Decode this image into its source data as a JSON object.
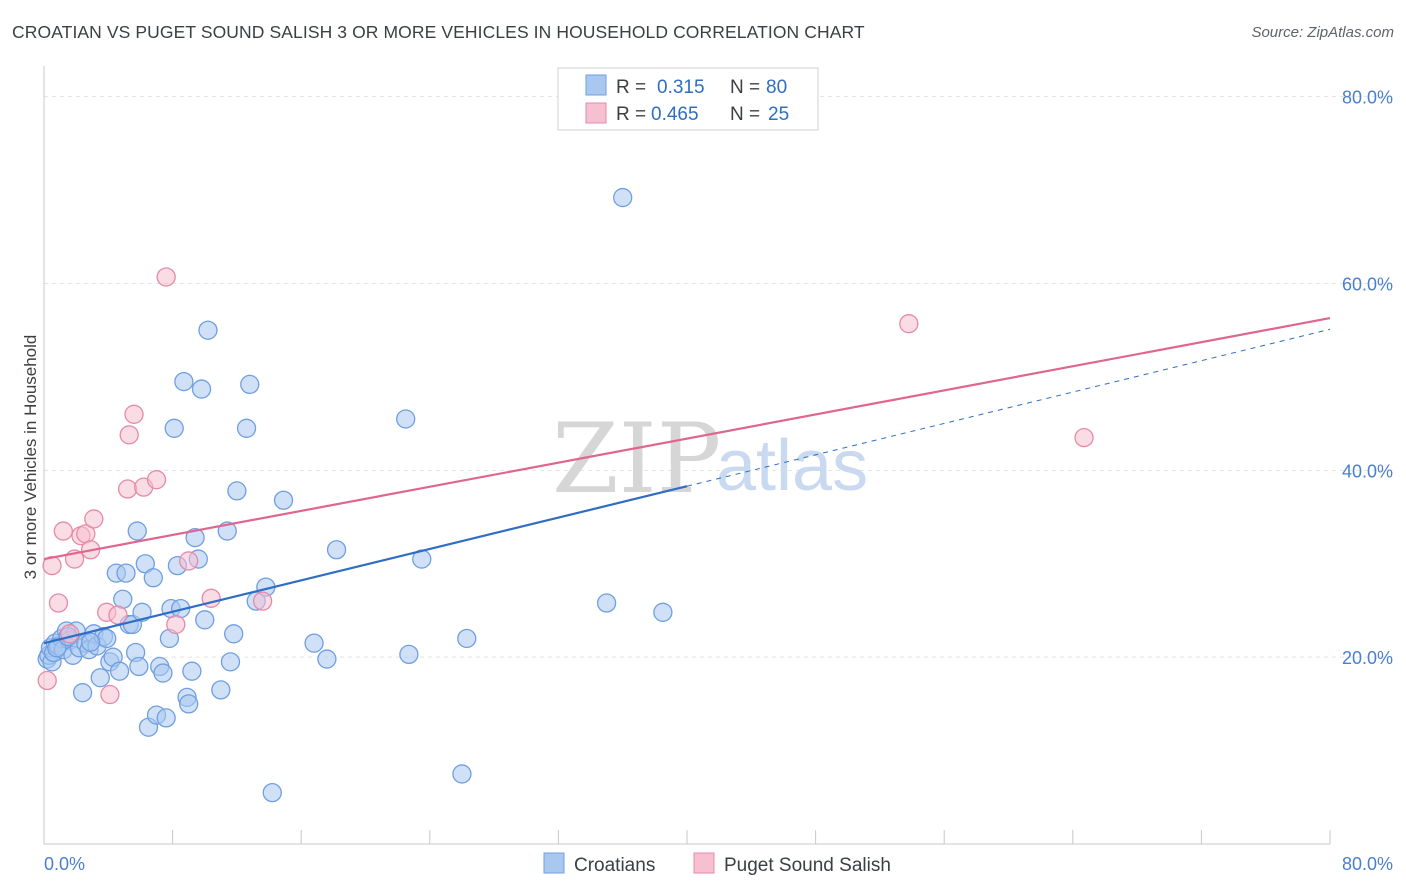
{
  "title": "CROATIAN VS PUGET SOUND SALISH 3 OR MORE VEHICLES IN HOUSEHOLD CORRELATION CHART",
  "source": "Source: ZipAtlas.com",
  "watermark": {
    "zip": "ZIP",
    "atlas": "atlas"
  },
  "colors": {
    "blue_fill": "#a9c8f0",
    "blue_stroke": "#6f9fe0",
    "blue_line": "#2f6ec4",
    "pink_fill": "#f6c0d0",
    "pink_stroke": "#e58aa8",
    "pink_line": "#e0668f",
    "grid": "#e3e3e3",
    "tick_text": "#4a7fd0"
  },
  "legend": {
    "rows": [
      {
        "r_label": "R =",
        "r_value": "0.315",
        "n_label": "N =",
        "n_value": "80",
        "color": "blue"
      },
      {
        "r_label": "R =",
        "r_value": "0.465",
        "n_label": "N =",
        "n_value": "25",
        "color": "pink"
      }
    ]
  },
  "chart_data": {
    "type": "scatter",
    "ylabel": "3 or more Vehicles in Household",
    "xlim": [
      0,
      80
    ],
    "ylim": [
      0,
      82
    ],
    "x_ticks": [
      "0.0%",
      "80.0%"
    ],
    "y_ticks": [
      {
        "value": 20,
        "label": "20.0%"
      },
      {
        "value": 40,
        "label": "40.0%"
      },
      {
        "value": 60,
        "label": "60.0%"
      },
      {
        "value": 80,
        "label": "80.0%"
      }
    ],
    "grid": true,
    "legend_position": "top-center",
    "series": [
      {
        "name": "Croatians",
        "color": "blue",
        "points": [
          [
            0.2,
            19.8
          ],
          [
            0.3,
            20.2
          ],
          [
            0.4,
            21.0
          ],
          [
            0.5,
            19.5
          ],
          [
            0.6,
            20.5
          ],
          [
            0.7,
            21.5
          ],
          [
            0.9,
            21.2
          ],
          [
            1.1,
            22.0
          ],
          [
            1.2,
            20.8
          ],
          [
            1.4,
            22.8
          ],
          [
            1.6,
            21.8
          ],
          [
            1.8,
            20.2
          ],
          [
            2.0,
            22.8
          ],
          [
            2.2,
            21.0
          ],
          [
            2.4,
            16.2
          ],
          [
            2.6,
            21.5
          ],
          [
            2.8,
            20.8
          ],
          [
            3.1,
            22.5
          ],
          [
            3.3,
            21.2
          ],
          [
            3.5,
            17.8
          ],
          [
            3.7,
            22.2
          ],
          [
            3.9,
            22.0
          ],
          [
            4.1,
            19.5
          ],
          [
            4.3,
            20.0
          ],
          [
            4.5,
            29.0
          ],
          [
            4.7,
            18.5
          ],
          [
            4.9,
            26.2
          ],
          [
            5.1,
            29.0
          ],
          [
            5.3,
            23.5
          ],
          [
            5.5,
            23.5
          ],
          [
            5.7,
            20.5
          ],
          [
            5.8,
            33.5
          ],
          [
            5.9,
            19.0
          ],
          [
            6.1,
            24.8
          ],
          [
            6.3,
            30.0
          ],
          [
            6.5,
            12.5
          ],
          [
            6.8,
            28.5
          ],
          [
            7.0,
            13.8
          ],
          [
            7.2,
            19.0
          ],
          [
            7.4,
            18.3
          ],
          [
            7.6,
            13.5
          ],
          [
            7.8,
            22.0
          ],
          [
            7.9,
            25.2
          ],
          [
            8.1,
            44.5
          ],
          [
            8.3,
            29.8
          ],
          [
            8.5,
            25.2
          ],
          [
            8.7,
            49.5
          ],
          [
            8.9,
            15.7
          ],
          [
            9.0,
            15.0
          ],
          [
            9.2,
            18.5
          ],
          [
            9.4,
            32.8
          ],
          [
            9.6,
            30.5
          ],
          [
            9.8,
            48.7
          ],
          [
            10.0,
            24.0
          ],
          [
            10.2,
            55.0
          ],
          [
            11.0,
            16.5
          ],
          [
            11.4,
            33.5
          ],
          [
            11.6,
            19.5
          ],
          [
            11.8,
            22.5
          ],
          [
            12.0,
            37.8
          ],
          [
            12.6,
            44.5
          ],
          [
            12.8,
            49.2
          ],
          [
            13.2,
            26.0
          ],
          [
            13.8,
            27.5
          ],
          [
            14.2,
            5.5
          ],
          [
            14.9,
            36.8
          ],
          [
            16.8,
            21.5
          ],
          [
            17.6,
            19.8
          ],
          [
            18.2,
            31.5
          ],
          [
            22.5,
            45.5
          ],
          [
            22.7,
            20.3
          ],
          [
            23.5,
            30.5
          ],
          [
            26.0,
            7.5
          ],
          [
            26.3,
            22.0
          ],
          [
            35.0,
            25.8
          ],
          [
            36.0,
            69.2
          ],
          [
            38.5,
            24.8
          ],
          [
            0.8,
            21.0
          ],
          [
            1.5,
            22.2
          ],
          [
            2.9,
            21.6
          ]
        ]
      },
      {
        "name": "Puget Sound Salish",
        "color": "pink",
        "points": [
          [
            0.2,
            17.5
          ],
          [
            0.5,
            29.8
          ],
          [
            0.9,
            25.8
          ],
          [
            1.2,
            33.5
          ],
          [
            1.6,
            22.5
          ],
          [
            1.9,
            30.5
          ],
          [
            2.3,
            33.0
          ],
          [
            2.6,
            33.2
          ],
          [
            2.9,
            31.5
          ],
          [
            3.1,
            34.8
          ],
          [
            3.9,
            24.8
          ],
          [
            4.1,
            16.0
          ],
          [
            4.6,
            24.5
          ],
          [
            5.2,
            38.0
          ],
          [
            5.3,
            43.8
          ],
          [
            5.6,
            46.0
          ],
          [
            6.2,
            38.2
          ],
          [
            7.0,
            39.0
          ],
          [
            7.6,
            60.7
          ],
          [
            8.2,
            23.5
          ],
          [
            9.0,
            30.3
          ],
          [
            10.4,
            26.3
          ],
          [
            13.6,
            26.0
          ],
          [
            53.8,
            55.7
          ],
          [
            64.7,
            43.5
          ]
        ]
      }
    ],
    "trendlines": [
      {
        "series": "Croatians",
        "x0": 0,
        "y0": 21.5,
        "x1": 40,
        "y1": 38.3,
        "dashed_to_x": 80,
        "dashed_to_y": 55.1
      },
      {
        "series": "Puget Sound Salish",
        "x0": 0,
        "y0": 30.5,
        "x1": 80,
        "y1": 56.3
      }
    ]
  },
  "bottom_legend": [
    {
      "label": "Croatians",
      "color": "blue"
    },
    {
      "label": "Puget Sound Salish",
      "color": "pink"
    }
  ]
}
